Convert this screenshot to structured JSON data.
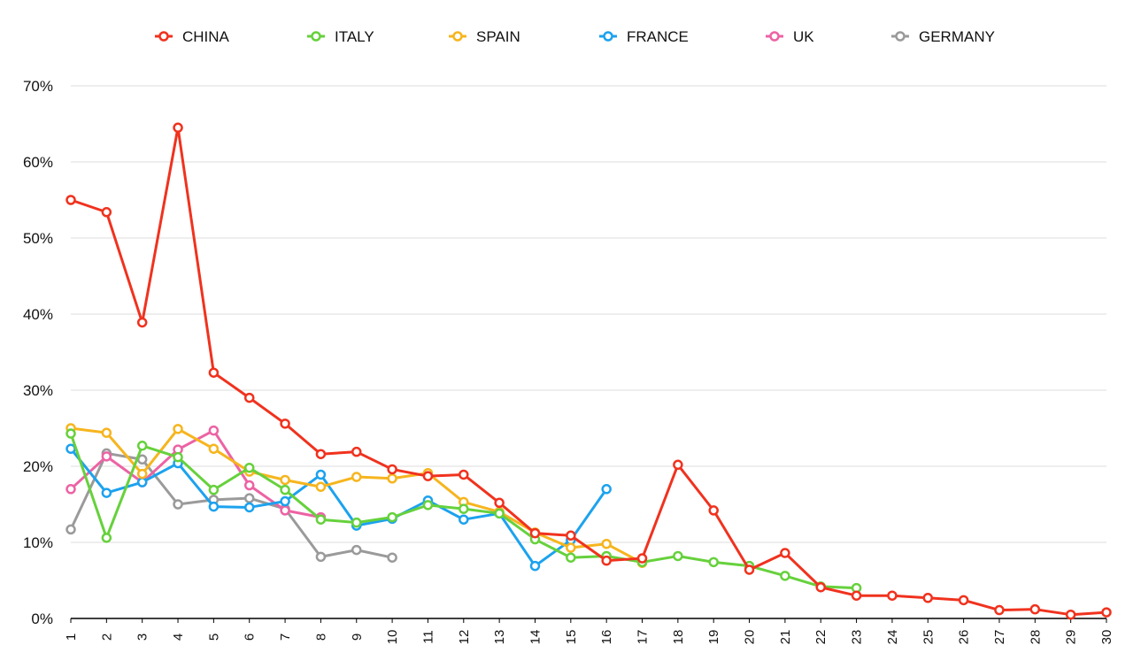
{
  "chart_data": {
    "type": "line",
    "title": "",
    "xlabel": "",
    "ylabel": "",
    "x": [
      1,
      2,
      3,
      4,
      5,
      6,
      7,
      8,
      9,
      10,
      11,
      12,
      13,
      14,
      15,
      16,
      17,
      18,
      19,
      20,
      21,
      22,
      23,
      24,
      25,
      26,
      27,
      28,
      29,
      30
    ],
    "xlim": [
      1,
      30
    ],
    "ylim": [
      0,
      70
    ],
    "y_ticks": [
      0,
      10,
      20,
      30,
      40,
      50,
      60,
      70
    ],
    "y_tick_labels": [
      "0%",
      "10%",
      "20%",
      "30%",
      "40%",
      "50%",
      "60%",
      "70%"
    ],
    "x_tick_labels": [
      "1",
      "2",
      "3",
      "4",
      "5",
      "6",
      "7",
      "8",
      "9",
      "10",
      "11",
      "12",
      "13",
      "14",
      "15",
      "16",
      "17",
      "18",
      "19",
      "20",
      "21",
      "22",
      "23",
      "24",
      "25",
      "26",
      "27",
      "28",
      "29",
      "30"
    ],
    "grid": true,
    "legend_position": "top",
    "series": [
      {
        "name": "CHINA",
        "color": "#f0321e",
        "values": [
          55.0,
          53.4,
          38.9,
          64.5,
          32.3,
          29.0,
          25.6,
          21.6,
          21.9,
          19.6,
          18.7,
          18.9,
          15.2,
          11.2,
          10.9,
          7.6,
          7.9,
          20.2,
          14.2,
          6.4,
          8.6,
          4.1,
          3.0,
          3.0,
          2.7,
          2.4,
          1.1,
          1.2,
          0.5,
          0.8
        ]
      },
      {
        "name": "ITALY",
        "color": "#66d13c",
        "values": [
          24.3,
          10.6,
          22.7,
          21.2,
          16.9,
          19.8,
          16.9,
          13.0,
          12.6,
          13.3,
          14.9,
          14.4,
          13.8,
          10.4,
          8.0,
          8.2,
          7.4,
          8.2,
          7.4,
          6.9,
          5.6,
          4.2,
          4.0,
          null,
          null,
          null,
          null,
          null,
          null,
          null
        ]
      },
      {
        "name": "SPAIN",
        "color": "#f6b51e",
        "values": [
          25.0,
          24.4,
          19.0,
          24.9,
          22.3,
          19.3,
          18.2,
          17.3,
          18.6,
          18.4,
          19.1,
          15.3,
          14.0,
          11.3,
          9.3,
          9.8,
          7.3,
          null,
          null,
          null,
          null,
          null,
          null,
          null,
          null,
          null,
          null,
          null,
          null,
          null
        ]
      },
      {
        "name": "FRANCE",
        "color": "#1ca2ee",
        "values": [
          22.3,
          16.5,
          17.9,
          20.4,
          14.7,
          14.6,
          15.4,
          18.9,
          12.2,
          13.1,
          15.5,
          13.0,
          13.8,
          6.9,
          10.3,
          17.0,
          null,
          null,
          null,
          null,
          null,
          null,
          null,
          null,
          null,
          null,
          null,
          null,
          null,
          null
        ]
      },
      {
        "name": "UK",
        "color": "#ec63a4",
        "values": [
          17.0,
          21.3,
          17.9,
          22.2,
          24.7,
          17.5,
          14.2,
          13.3,
          null,
          null,
          null,
          null,
          null,
          null,
          null,
          null,
          null,
          null,
          null,
          null,
          null,
          null,
          null,
          null,
          null,
          null,
          null,
          null,
          null,
          null
        ]
      },
      {
        "name": "GERMANY",
        "color": "#9a9a9a",
        "values": [
          11.7,
          21.7,
          20.9,
          15.0,
          15.6,
          15.8,
          14.4,
          8.1,
          9.0,
          8.0,
          null,
          null,
          null,
          null,
          null,
          null,
          null,
          null,
          null,
          null,
          null,
          null,
          null,
          null,
          null,
          null,
          null,
          null,
          null,
          null
        ]
      }
    ]
  }
}
